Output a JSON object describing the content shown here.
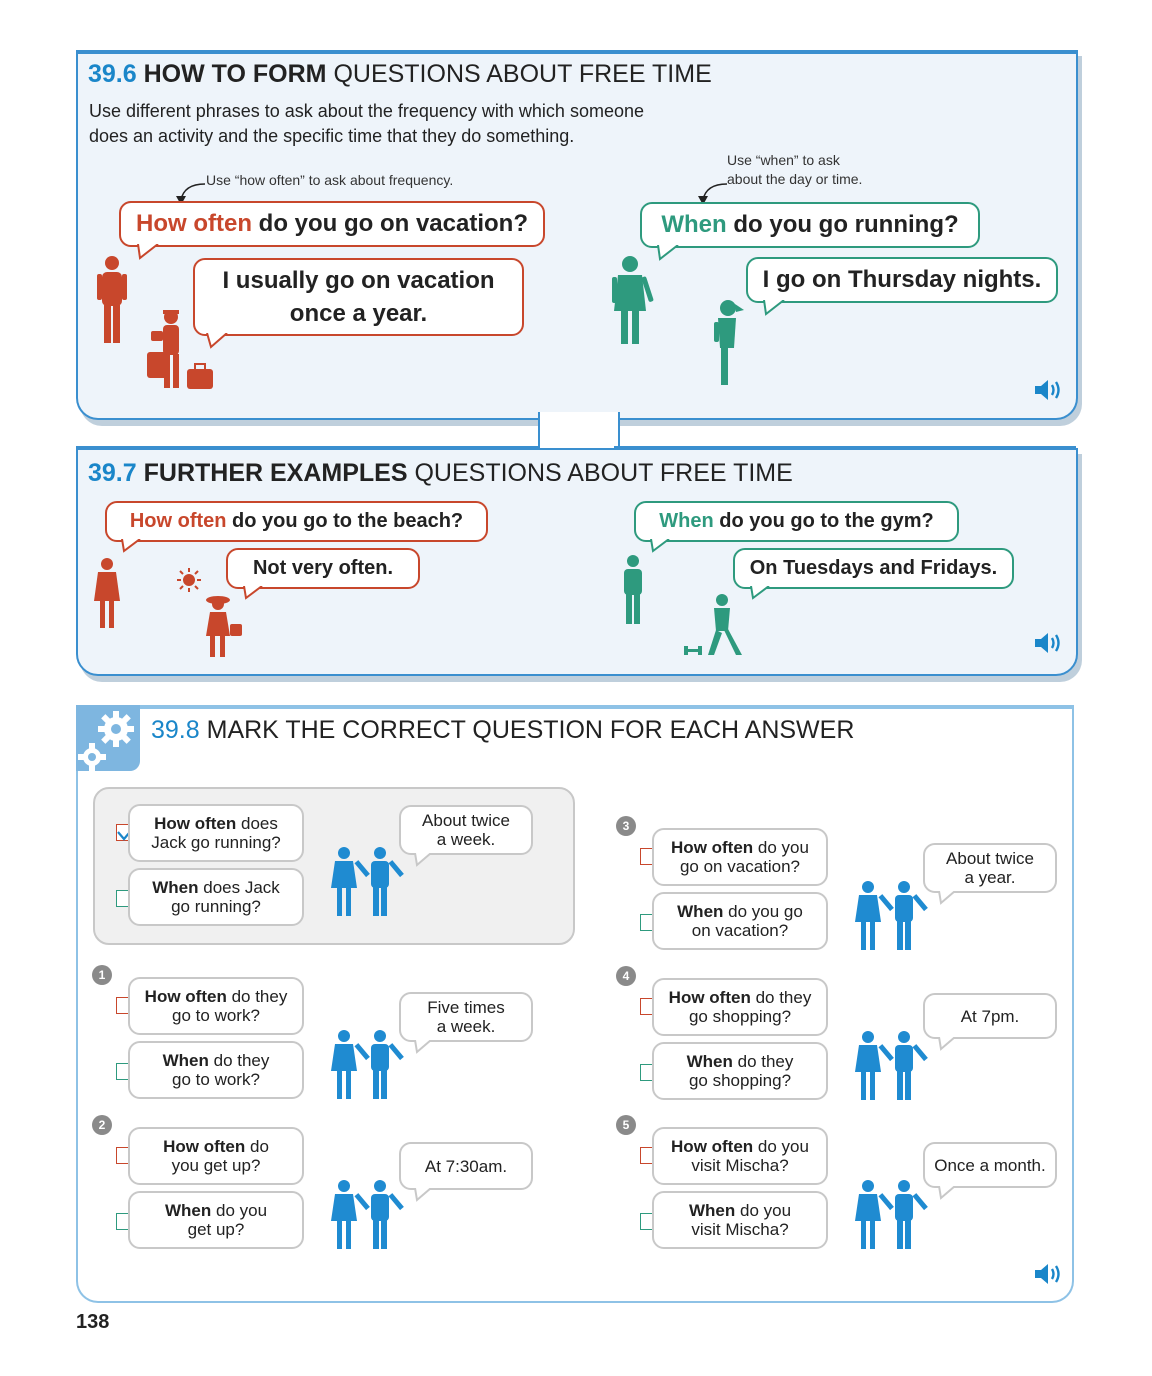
{
  "s396": {
    "num": "39.6",
    "bold": "HOW TO FORM",
    "rest": "QUESTIONS ABOUT FREE TIME",
    "intro_line1": "Use different phrases to ask about the frequency with which someone",
    "intro_line2": "does an activity and the specific time that they do something.",
    "note_left": "Use “how often” to ask about frequency.",
    "note_right_1": "Use “when” to ask",
    "note_right_2": "about the day or time.",
    "q1_hl": "How often",
    "q1_rest": "do you go on vacation?",
    "a1_line1": "I usually go on vacation",
    "a1_line2": "once a year.",
    "q2_hl": "When",
    "q2_rest": "do you go running?",
    "a2": "I go on Thursday nights."
  },
  "s397": {
    "num": "39.7",
    "bold": "FURTHER EXAMPLES",
    "rest": "QUESTIONS ABOUT FREE TIME",
    "q1_hl": "How often",
    "q1_rest": "do you go to the beach?",
    "a1": "Not very often.",
    "q2_hl": "When",
    "q2_rest": "do you go to the gym?",
    "a2": "On Tuesdays and Fridays."
  },
  "s398": {
    "num": "39.8",
    "title": "MARK THE CORRECT QUESTION FOR EACH ANSWER",
    "example": {
      "opt1_b": "How often",
      "opt1_r": "does",
      "opt1_l2": "Jack go running?",
      "opt2_b": "When",
      "opt2_r": "does Jack",
      "opt2_l2": "go running?",
      "answer_l1": "About twice",
      "answer_l2": "a week."
    },
    "items": [
      {
        "num": "1",
        "opt1_b": "How often",
        "opt1_r": "do they",
        "opt1_l2": "go to work?",
        "opt2_b": "When",
        "opt2_r": "do they",
        "opt2_l2": "go to work?",
        "answer_l1": "Five times",
        "answer_l2": "a week."
      },
      {
        "num": "2",
        "opt1_b": "How often",
        "opt1_r": "do",
        "opt1_l2": "you get up?",
        "opt2_b": "When",
        "opt2_r": "do you",
        "opt2_l2": "get up?",
        "answer_l1": "At 7:30am.",
        "answer_l2": ""
      },
      {
        "num": "3",
        "opt1_b": "How often",
        "opt1_r": "do you",
        "opt1_l2": "go on vacation?",
        "opt2_b": "When",
        "opt2_r": "do you go",
        "opt2_l2": "on vacation?",
        "answer_l1": "About twice",
        "answer_l2": "a year."
      },
      {
        "num": "4",
        "opt1_b": "How often",
        "opt1_r": "do they",
        "opt1_l2": "go shopping?",
        "opt2_b": "When",
        "opt2_r": "do they",
        "opt2_l2": "go shopping?",
        "answer_l1": "At 7pm.",
        "answer_l2": ""
      },
      {
        "num": "5",
        "opt1_b": "How often",
        "opt1_r": "do you",
        "opt1_l2": "visit Mischa?",
        "opt2_b": "When",
        "opt2_r": "do you",
        "opt2_l2": "visit Mischa?",
        "answer_l1": "Once a month.",
        "answer_l2": ""
      }
    ]
  },
  "page_number": "138",
  "colors": {
    "blue": "#1a86c9",
    "red": "#c8472c",
    "green": "#2e9a7e",
    "figure_blue": "#1f8bd1"
  },
  "icons": [
    "speaker-icon",
    "gears-icon",
    "checkmark-icon"
  ]
}
